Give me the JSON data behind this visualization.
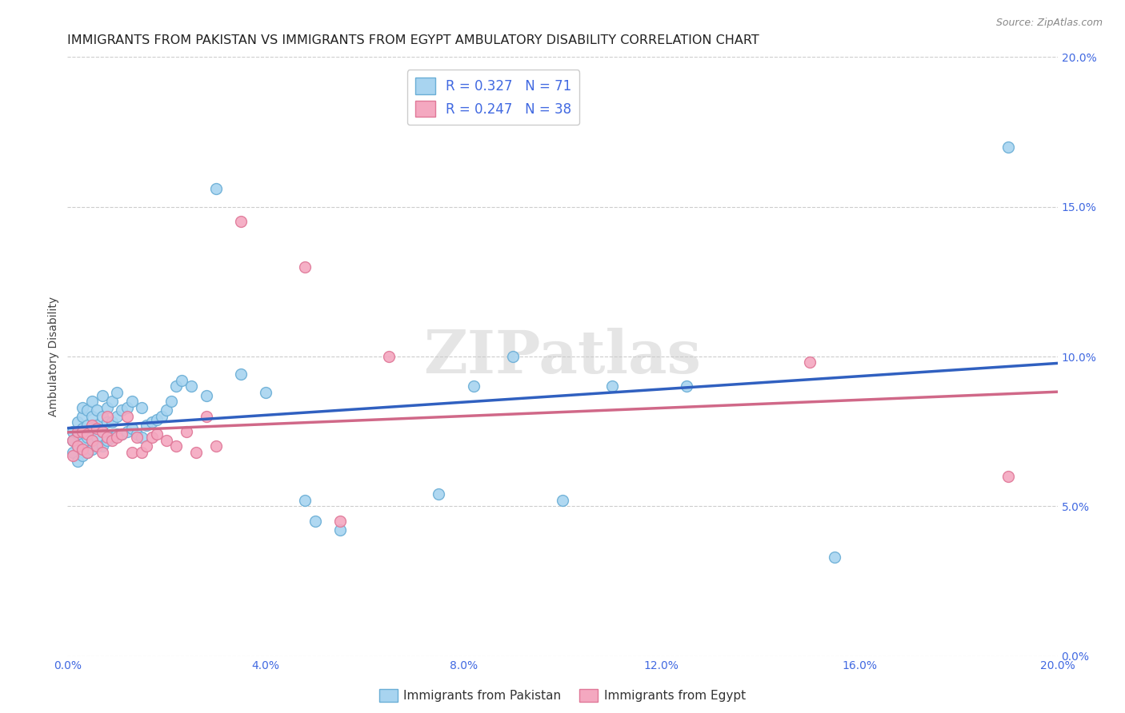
{
  "title": "IMMIGRANTS FROM PAKISTAN VS IMMIGRANTS FROM EGYPT AMBULATORY DISABILITY CORRELATION CHART",
  "source": "Source: ZipAtlas.com",
  "ylabel_label": "Ambulatory Disability",
  "x_min": 0.0,
  "x_max": 0.2,
  "y_min": 0.0,
  "y_max": 0.2,
  "x_ticks": [
    0.0,
    0.04,
    0.08,
    0.12,
    0.16,
    0.2
  ],
  "y_ticks": [
    0.0,
    0.05,
    0.1,
    0.15,
    0.2
  ],
  "pakistan_color": "#A8D4F0",
  "pakistan_edge_color": "#6AAED6",
  "egypt_color": "#F4A8C0",
  "egypt_edge_color": "#E07898",
  "line_pakistan_color": "#3060C0",
  "line_egypt_color": "#D06888",
  "R_pakistan": 0.327,
  "N_pakistan": 71,
  "R_egypt": 0.247,
  "N_egypt": 38,
  "watermark": "ZIPatlas",
  "pakistan_x": [
    0.001,
    0.001,
    0.001,
    0.002,
    0.002,
    0.002,
    0.002,
    0.003,
    0.003,
    0.003,
    0.003,
    0.003,
    0.004,
    0.004,
    0.004,
    0.004,
    0.005,
    0.005,
    0.005,
    0.005,
    0.005,
    0.006,
    0.006,
    0.006,
    0.006,
    0.007,
    0.007,
    0.007,
    0.007,
    0.008,
    0.008,
    0.008,
    0.009,
    0.009,
    0.009,
    0.01,
    0.01,
    0.01,
    0.011,
    0.011,
    0.012,
    0.012,
    0.013,
    0.013,
    0.014,
    0.015,
    0.015,
    0.016,
    0.017,
    0.018,
    0.019,
    0.02,
    0.021,
    0.022,
    0.023,
    0.025,
    0.028,
    0.03,
    0.035,
    0.04,
    0.048,
    0.05,
    0.055,
    0.075,
    0.082,
    0.09,
    0.1,
    0.11,
    0.125,
    0.155,
    0.19
  ],
  "pakistan_y": [
    0.068,
    0.072,
    0.075,
    0.065,
    0.07,
    0.074,
    0.078,
    0.067,
    0.071,
    0.076,
    0.08,
    0.083,
    0.068,
    0.073,
    0.077,
    0.082,
    0.069,
    0.072,
    0.076,
    0.08,
    0.085,
    0.07,
    0.073,
    0.077,
    0.082,
    0.07,
    0.075,
    0.08,
    0.087,
    0.072,
    0.078,
    0.083,
    0.073,
    0.078,
    0.085,
    0.074,
    0.08,
    0.088,
    0.074,
    0.082,
    0.075,
    0.083,
    0.076,
    0.085,
    0.074,
    0.073,
    0.083,
    0.077,
    0.078,
    0.079,
    0.08,
    0.082,
    0.085,
    0.09,
    0.092,
    0.09,
    0.087,
    0.156,
    0.094,
    0.088,
    0.052,
    0.045,
    0.042,
    0.054,
    0.09,
    0.1,
    0.052,
    0.09,
    0.09,
    0.033,
    0.17
  ],
  "egypt_x": [
    0.001,
    0.001,
    0.002,
    0.002,
    0.003,
    0.003,
    0.004,
    0.004,
    0.005,
    0.005,
    0.006,
    0.006,
    0.007,
    0.007,
    0.008,
    0.008,
    0.009,
    0.01,
    0.011,
    0.012,
    0.013,
    0.014,
    0.015,
    0.016,
    0.017,
    0.018,
    0.02,
    0.022,
    0.024,
    0.026,
    0.028,
    0.03,
    0.035,
    0.048,
    0.055,
    0.065,
    0.15,
    0.19
  ],
  "egypt_y": [
    0.067,
    0.072,
    0.07,
    0.075,
    0.069,
    0.075,
    0.068,
    0.074,
    0.072,
    0.077,
    0.07,
    0.076,
    0.068,
    0.075,
    0.073,
    0.08,
    0.072,
    0.073,
    0.074,
    0.08,
    0.068,
    0.073,
    0.068,
    0.07,
    0.073,
    0.074,
    0.072,
    0.07,
    0.075,
    0.068,
    0.08,
    0.07,
    0.145,
    0.13,
    0.045,
    0.1,
    0.098,
    0.06
  ],
  "background_color": "#ffffff",
  "grid_color": "#cccccc",
  "marker_size": 100,
  "title_fontsize": 11.5,
  "axis_label_fontsize": 10,
  "tick_fontsize": 10,
  "legend_fontsize": 12
}
